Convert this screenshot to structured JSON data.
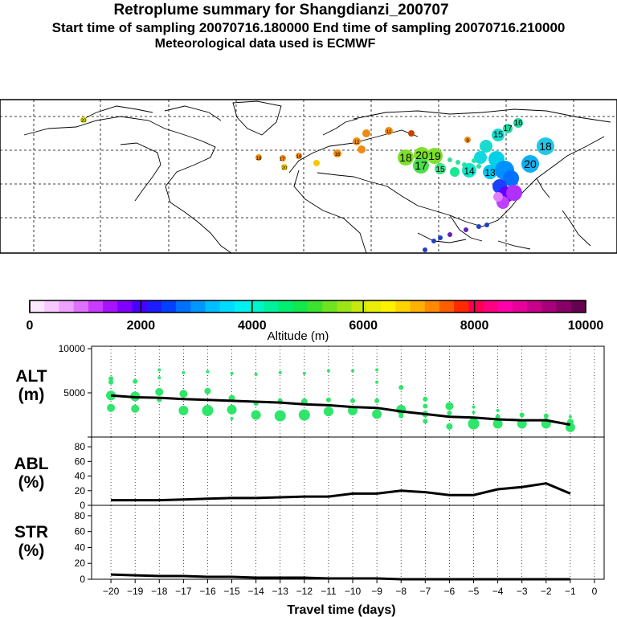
{
  "header": {
    "title": "Retroplume summary for Shangdianzi_200707",
    "sampling_line": "Start time of sampling 20070716.180000     End time of sampling 20070716.210000",
    "met_line": "Meteorological data used is ECMWF"
  },
  "colorbar": {
    "label": "Altitude (m)",
    "ticks": [
      "0",
      "2000",
      "4000",
      "6000",
      "8000",
      "10000"
    ],
    "colors": [
      "#fde9ff",
      "#f7c9ff",
      "#eea2ff",
      "#df71ff",
      "#c83cff",
      "#a712ff",
      "#8000ff",
      "#4a00ff",
      "#1c1cff",
      "#0040ff",
      "#0070ff",
      "#0098ff",
      "#00bfff",
      "#00dcff",
      "#00f2f0",
      "#00f5c8",
      "#00f29c",
      "#00ee72",
      "#12e84c",
      "#3be32e",
      "#6de41e",
      "#9ce616",
      "#c6ea0e",
      "#e8ee08",
      "#fff200",
      "#ffd400",
      "#ffb000",
      "#ff8a00",
      "#ff5e00",
      "#ff2a00",
      "#ff0050",
      "#ff0082",
      "#ff00aa",
      "#e8009a",
      "#c8008a",
      "#a80078",
      "#880066",
      "#660050"
    ]
  },
  "map": {
    "labels": [
      {
        "t": "20",
        "c": "#d8dc20"
      },
      {
        "t": "18",
        "c": "#f08a10"
      },
      {
        "t": "17",
        "c": "#f08a10"
      },
      {
        "t": "20",
        "c": "#f4c800"
      },
      {
        "t": "19",
        "c": "#f08a10"
      },
      {
        "t": "16",
        "c": "#f08a10"
      },
      {
        "t": "12",
        "c": "#f08a10"
      },
      {
        "t": "11",
        "c": "#f08a10"
      },
      {
        "t": "9",
        "c": "#f08a10"
      },
      {
        "t": "17",
        "c": "#22d8a0"
      },
      {
        "t": "16",
        "c": "#22d8a0"
      },
      {
        "t": "15",
        "c": "#18dcd0"
      },
      {
        "t": "18",
        "c": "#7ee02a"
      },
      {
        "t": "20",
        "c": "#7ee02a"
      },
      {
        "t": "19",
        "c": "#7ee02a"
      },
      {
        "t": "17",
        "c": "#7ee02a"
      },
      {
        "t": "15",
        "c": "#4cde4c"
      },
      {
        "t": "14",
        "c": "#10e6c8"
      },
      {
        "t": "18",
        "c": "#20c8e8"
      },
      {
        "t": "20",
        "c": "#10b0f0"
      },
      {
        "t": "13",
        "c": "#00c8f0"
      }
    ]
  },
  "chart_data": [
    {
      "type": "scatter",
      "panel": "ALT",
      "ylabel": "ALT\n(m)",
      "ylim": [
        0,
        10000
      ],
      "yticks": [
        5000,
        10000
      ],
      "x": [
        -20,
        -19,
        -18,
        -17,
        -16,
        -15,
        -14,
        -13,
        -12,
        -11,
        -10,
        -9,
        -8,
        -7,
        -6,
        -5,
        -4,
        -3,
        -2,
        -1
      ],
      "series": [
        {
          "name": "mean altitude",
          "values": [
            4700,
            4500,
            4450,
            4300,
            4200,
            4100,
            4000,
            3900,
            3700,
            3600,
            3400,
            3300,
            2900,
            2600,
            2300,
            2200,
            2000,
            1900,
            1900,
            1400
          ]
        }
      ],
      "dots": [
        [
          -20,
          6600,
          3
        ],
        [
          -20,
          6200,
          3
        ],
        [
          -20,
          4700,
          6
        ],
        [
          -20,
          3300,
          5
        ],
        [
          -19,
          6300,
          3
        ],
        [
          -19,
          4600,
          6
        ],
        [
          -19,
          3200,
          5
        ],
        [
          -18,
          7600,
          2
        ],
        [
          -18,
          6700,
          2
        ],
        [
          -18,
          5100,
          5
        ],
        [
          -18,
          4200,
          3
        ],
        [
          -17,
          7300,
          2
        ],
        [
          -17,
          4900,
          5
        ],
        [
          -17,
          3000,
          6
        ],
        [
          -16,
          7400,
          2
        ],
        [
          -16,
          5200,
          4
        ],
        [
          -16,
          3000,
          7
        ],
        [
          -15,
          7200,
          2
        ],
        [
          -15,
          4400,
          4
        ],
        [
          -15,
          3100,
          6
        ],
        [
          -15,
          2100,
          2
        ],
        [
          -14,
          7100,
          2
        ],
        [
          -14,
          3800,
          3
        ],
        [
          -14,
          2500,
          6
        ],
        [
          -13,
          7300,
          2
        ],
        [
          -13,
          4100,
          3
        ],
        [
          -13,
          2400,
          7
        ],
        [
          -12,
          7200,
          2
        ],
        [
          -12,
          4000,
          4
        ],
        [
          -12,
          2500,
          7
        ],
        [
          -11,
          7500,
          2
        ],
        [
          -11,
          4200,
          3
        ],
        [
          -11,
          2900,
          6
        ],
        [
          -10,
          7500,
          2
        ],
        [
          -10,
          4100,
          3
        ],
        [
          -10,
          3000,
          6
        ],
        [
          -9,
          7600,
          2
        ],
        [
          -9,
          6200,
          2
        ],
        [
          -9,
          4100,
          3
        ],
        [
          -9,
          2600,
          6
        ],
        [
          -8,
          5600,
          3
        ],
        [
          -8,
          3100,
          6
        ],
        [
          -8,
          2400,
          3
        ],
        [
          -7,
          4300,
          3
        ],
        [
          -7,
          3500,
          3
        ],
        [
          -7,
          2600,
          4
        ],
        [
          -7,
          1800,
          3
        ],
        [
          -6,
          3500,
          5
        ],
        [
          -6,
          2700,
          3
        ],
        [
          -6,
          1200,
          4
        ],
        [
          -5,
          3400,
          2
        ],
        [
          -5,
          2800,
          2
        ],
        [
          -5,
          1900,
          4
        ],
        [
          -5,
          1500,
          7
        ],
        [
          -4,
          3000,
          2
        ],
        [
          -4,
          2300,
          3
        ],
        [
          -4,
          1500,
          6
        ],
        [
          -3,
          2500,
          3
        ],
        [
          -3,
          1500,
          6
        ],
        [
          -2,
          2400,
          3
        ],
        [
          -2,
          1800,
          4
        ],
        [
          -2,
          1500,
          6
        ],
        [
          -1,
          2300,
          2
        ],
        [
          -1,
          1700,
          4
        ],
        [
          -1,
          1100,
          6
        ]
      ]
    },
    {
      "type": "line",
      "panel": "ABL",
      "ylabel": "ABL\n(%)",
      "ylim": [
        0,
        90
      ],
      "yticks": [
        0,
        20,
        40,
        60,
        80
      ],
      "x": [
        -20,
        -19,
        -18,
        -17,
        -16,
        -15,
        -14,
        -13,
        -12,
        -11,
        -10,
        -9,
        -8,
        -7,
        -6,
        -5,
        -4,
        -3,
        -2,
        -1
      ],
      "series": [
        {
          "name": "ABL",
          "values": [
            7,
            7,
            7,
            8,
            9,
            10,
            10,
            11,
            12,
            12,
            16,
            16,
            20,
            18,
            14,
            14,
            22,
            25,
            30,
            16
          ]
        }
      ]
    },
    {
      "type": "line",
      "panel": "STR",
      "ylabel": "STR\n(%)",
      "ylim": [
        0,
        90
      ],
      "yticks": [
        0,
        20,
        40,
        60,
        80
      ],
      "xlabel": "Travel time (days)",
      "xticks": [
        -20,
        -19,
        -18,
        -17,
        -16,
        -15,
        -14,
        -13,
        -12,
        -11,
        -10,
        -9,
        -8,
        -7,
        -6,
        -5,
        -4,
        -3,
        -2,
        -1,
        0
      ],
      "x": [
        -20,
        -19,
        -18,
        -17,
        -16,
        -15,
        -14,
        -13,
        -12,
        -11,
        -10,
        -9,
        -8,
        -7,
        -6,
        -5,
        -4,
        -3,
        -2,
        -1
      ],
      "series": [
        {
          "name": "STR",
          "values": [
            6,
            5,
            4,
            4,
            3,
            3,
            2,
            2,
            2,
            1,
            1,
            1,
            0,
            0,
            0,
            0,
            0,
            0,
            0,
            0
          ]
        }
      ]
    }
  ]
}
